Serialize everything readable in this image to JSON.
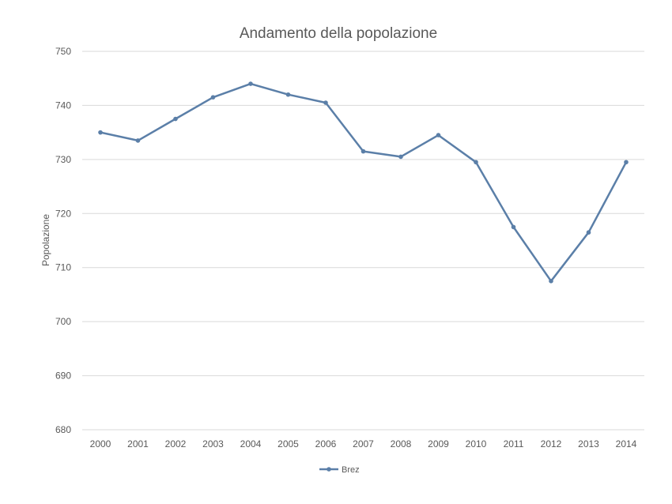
{
  "chart_data": {
    "type": "line",
    "title": "Andamento della popolazione",
    "xlabel": "",
    "ylabel": "Popolazione",
    "ylim": [
      680,
      750
    ],
    "ytick_step": 10,
    "grid": true,
    "legend_position": "bottom",
    "categories": [
      "2000",
      "2001",
      "2002",
      "2003",
      "2004",
      "2005",
      "2006",
      "2007",
      "2008",
      "2009",
      "2010",
      "2011",
      "2012",
      "2013",
      "2014"
    ],
    "series": [
      {
        "name": "Brez",
        "color": "#5b7fa8",
        "values": [
          735,
          733.5,
          737.5,
          741.5,
          744,
          742,
          740.5,
          731.5,
          730.5,
          734.5,
          729.5,
          717.5,
          707.5,
          716.5,
          729.5
        ]
      }
    ]
  }
}
